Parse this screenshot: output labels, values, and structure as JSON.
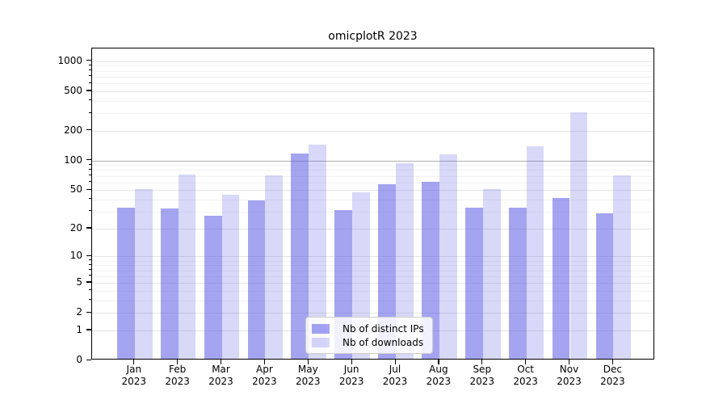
{
  "chart_data": {
    "type": "bar",
    "title": "omicplotR 2023",
    "y_scale": "log1p (axis positions proportional to log10(1+value))",
    "grid": true,
    "categories": [
      "Jan",
      "Feb",
      "Mar",
      "Apr",
      "May",
      "Jun",
      "Jul",
      "Aug",
      "Sep",
      "Oct",
      "Nov",
      "Dec"
    ],
    "year_label": "2023",
    "series": [
      {
        "name": "Nb of distinct IPs",
        "color": "rgba(90,90,230,0.55)",
        "color_on_white_hex": "#a6a6f0",
        "values": [
          32,
          31,
          26,
          38,
          114,
          30,
          55,
          58,
          32,
          32,
          40,
          28
        ]
      },
      {
        "name": "Nb of downloads",
        "color": "rgba(90,90,230,0.24)",
        "color_on_white_hex": "#d8d8f8",
        "values": [
          49,
          69,
          43,
          68,
          140,
          46,
          90,
          111,
          49,
          135,
          295,
          68
        ]
      }
    ],
    "y_axis": {
      "tick_values": [
        1000,
        500,
        200,
        100,
        50,
        20,
        10,
        5,
        2,
        1,
        0
      ],
      "tick_labels": [
        "1000",
        "500",
        "200",
        "100",
        "50",
        "20",
        "10",
        "5",
        "2",
        "1",
        "0"
      ],
      "minor_values": [
        3,
        4,
        6,
        7,
        8,
        9,
        30,
        40,
        60,
        70,
        80,
        90,
        300,
        400,
        600,
        700,
        800,
        900
      ],
      "emphasized_gridline": 100,
      "ylim": [
        0,
        1300
      ]
    },
    "legend": {
      "position": "lower center",
      "labels": [
        "Nb of distinct IPs",
        "Nb of downloads"
      ]
    },
    "colors": {
      "grid_minor": "#f2f2f2",
      "grid_major": "#e4e4e4",
      "grid_emphasized": "#aeaeae",
      "spine": "#000000",
      "background": "#ffffff"
    }
  }
}
